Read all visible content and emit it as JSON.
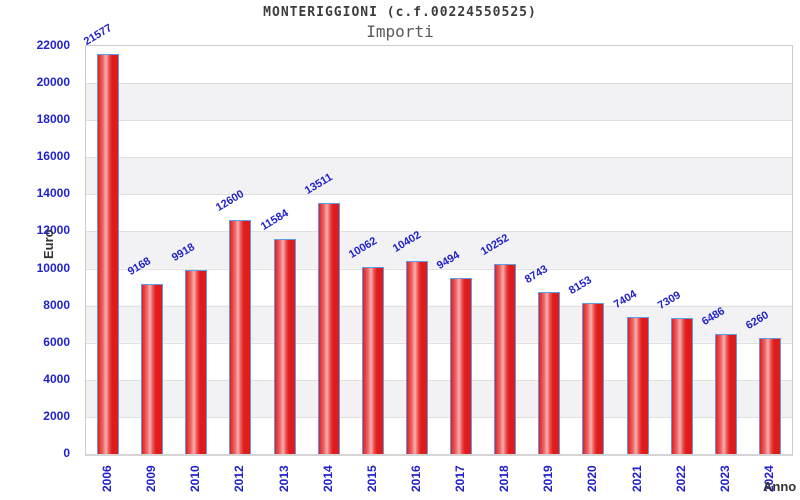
{
  "chart_data": {
    "type": "bar",
    "title": "MONTERIGGIONI (c.f.00224550525)",
    "subtitle": "Importi",
    "ylabel": "Euro",
    "xlabel": "Anno",
    "categories": [
      "2006",
      "2009",
      "2010",
      "2012",
      "2013",
      "2014",
      "2015",
      "2016",
      "2017",
      "2018",
      "2019",
      "2020",
      "2021",
      "2022",
      "2023",
      "2024"
    ],
    "values": [
      21577,
      9168,
      9918,
      12600,
      11584,
      13511,
      10062,
      10402,
      9494,
      10252,
      8743,
      8153,
      7404,
      7309,
      6486,
      6260
    ],
    "ylim": [
      0,
      22000
    ],
    "yticks": [
      0,
      2000,
      4000,
      6000,
      8000,
      10000,
      12000,
      14000,
      16000,
      18000,
      20000,
      22000
    ],
    "grid": true,
    "legend": "none",
    "colors": {
      "tick_label": "#2222cc",
      "value_label": "#2222cc",
      "bar_border": "#5e9ce8",
      "bar_red": "#e02020",
      "bar_highlight": "#f8b0b0",
      "band_gray": "#f2f2f4",
      "gridline": "#e0e0e0",
      "plot_border": "#cbcbcb",
      "title_text": "#3c3c3c",
      "subtitle_text": "#5a5a5a",
      "axis_title_text": "#333333"
    }
  }
}
